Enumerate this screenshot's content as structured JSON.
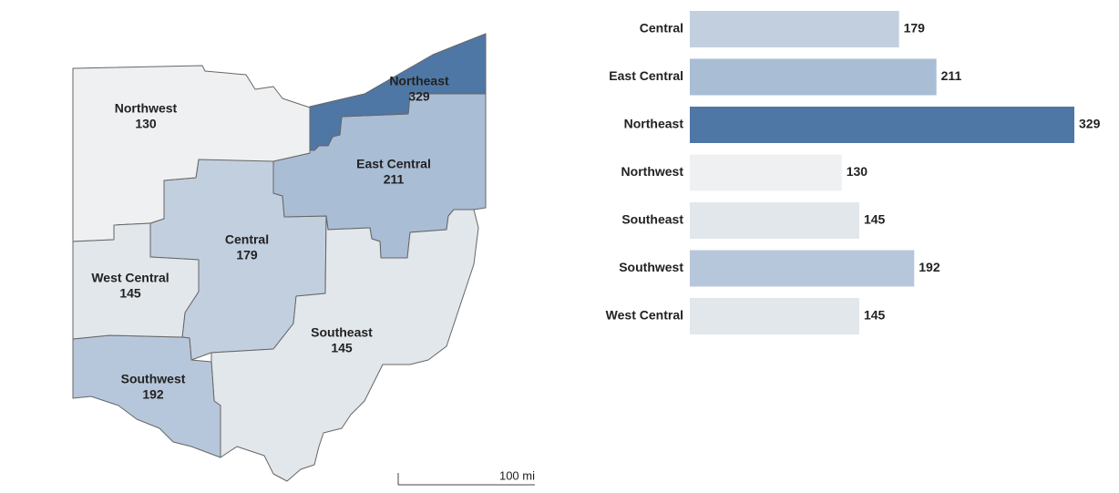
{
  "chart_data": {
    "type": "bar",
    "orientation": "horizontal",
    "categories": [
      "Central",
      "East Central",
      "Northeast",
      "Northwest",
      "Southeast",
      "Southwest",
      "West Central"
    ],
    "values": [
      179,
      211,
      329,
      130,
      145,
      192,
      145
    ],
    "colors": [
      "#c2cfdf",
      "#a9bdd5",
      "#4f77a5",
      "#eff0f1",
      "#e2e7eb",
      "#b7c7db",
      "#e2e7eb"
    ]
  },
  "map": {
    "scale_label": "100 mi"
  }
}
